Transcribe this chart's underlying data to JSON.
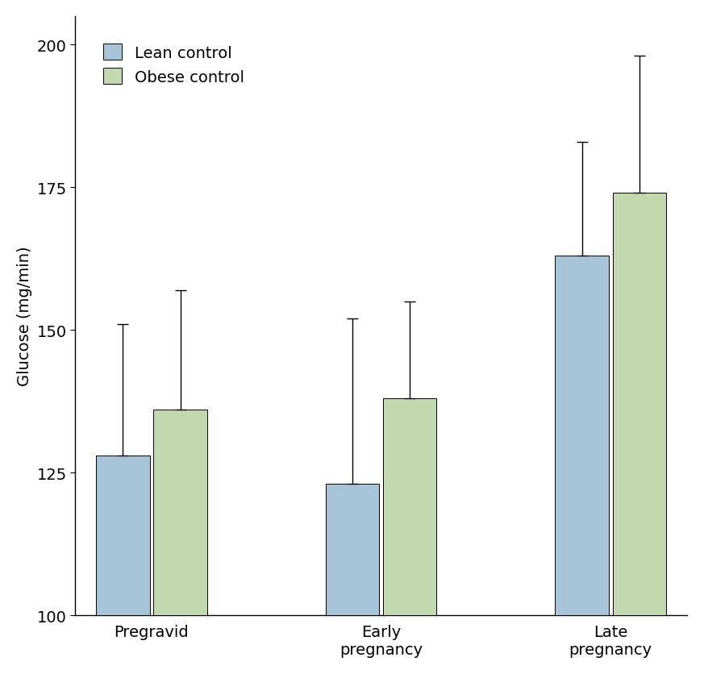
{
  "categories": [
    "Pregravid",
    "Early\npregnancy",
    "Late\npregnancy"
  ],
  "lean_values": [
    128,
    123,
    163
  ],
  "obese_values": [
    136,
    138,
    174
  ],
  "lean_errors_up": [
    23,
    29,
    20
  ],
  "obese_errors_up": [
    21,
    17,
    24
  ],
  "lean_color": "#a8c4d8",
  "obese_color": "#c2d9b0",
  "lean_label": "Lean control",
  "obese_label": "Obese control",
  "ylabel": "Glucose (mg/min)",
  "ylim": [
    100,
    205
  ],
  "yticks": [
    100,
    125,
    150,
    175,
    200
  ],
  "bar_width": 0.28,
  "bar_gap": 0.02,
  "group_positions": [
    0.5,
    1.7,
    2.9
  ],
  "error_capsize": 5,
  "error_linewidth": 1.0,
  "background_color": "#ffffff",
  "font_size": 14,
  "tick_font_size": 14,
  "legend_font_size": 14
}
